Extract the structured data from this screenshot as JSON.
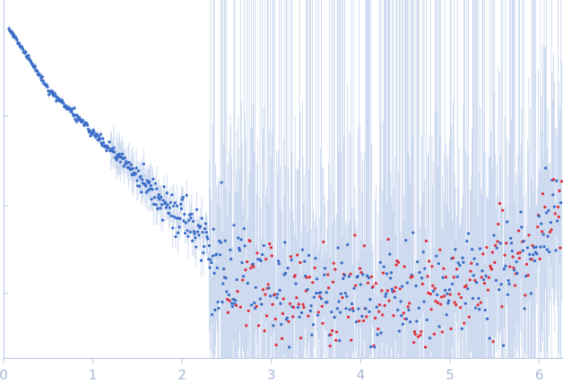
{
  "chart_data": {
    "type": "scatter",
    "title": "",
    "xlabel": "",
    "ylabel": "",
    "xlim": [
      0,
      6.25
    ],
    "ylog": true,
    "grid": false,
    "legend": "none",
    "x_ticks": [
      {
        "value": 0,
        "label": "0"
      },
      {
        "value": 1,
        "label": "1"
      },
      {
        "value": 2,
        "label": "2"
      },
      {
        "value": 3,
        "label": "3"
      },
      {
        "value": 4,
        "label": "4"
      },
      {
        "value": 5,
        "label": "5"
      },
      {
        "value": 6,
        "label": "6"
      }
    ],
    "colors": {
      "points_positive": "#3a6cc8",
      "points_negative": "#e0303a",
      "error_bars": "#c8d6ee",
      "axis": "#b7c5e0",
      "tick_labels": "#a8b8d8"
    },
    "curve": {
      "x_min": 0.06,
      "x_max": 6.25,
      "segments": [
        {
          "x": 0.06,
          "y": 1.0
        },
        {
          "x": 0.5,
          "y": 0.28
        },
        {
          "x": 1.0,
          "y": 0.11
        },
        {
          "x": 1.5,
          "y": 0.045
        },
        {
          "x": 2.0,
          "y": 0.017
        },
        {
          "x": 2.4,
          "y": 0.0075
        },
        {
          "x": 3.0,
          "y": 0.004
        },
        {
          "x": 4.0,
          "y": 0.0035
        },
        {
          "x": 5.0,
          "y": 0.0036
        },
        {
          "x": 5.8,
          "y": 0.0075
        },
        {
          "x": 6.25,
          "y": 0.02
        }
      ]
    }
  }
}
